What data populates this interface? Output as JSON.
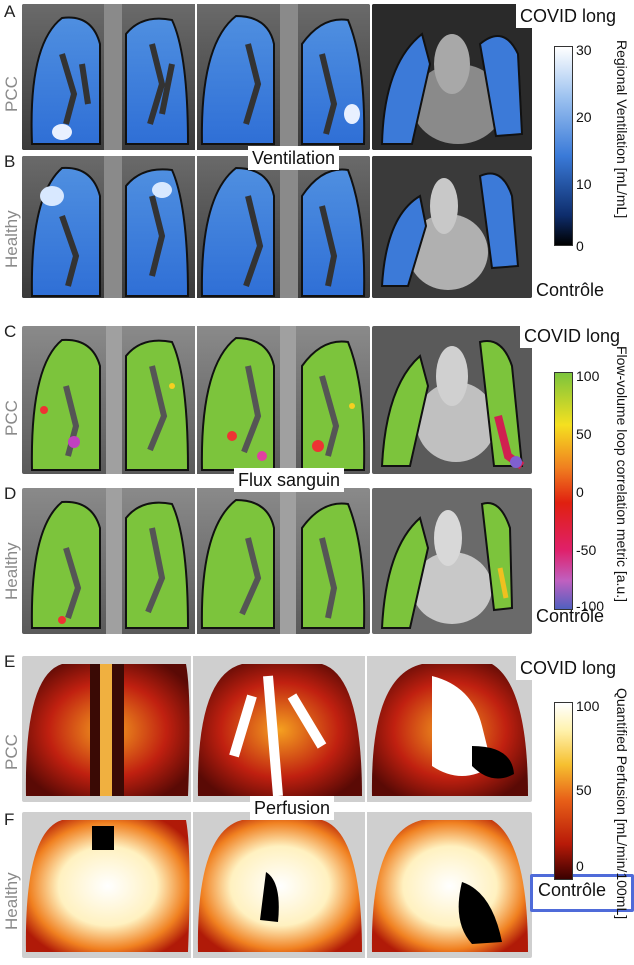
{
  "sections": [
    {
      "top_letter": "A",
      "bottom_letter": "B",
      "top_row": "PCC",
      "bottom_row": "Healthy",
      "mid_label": "Ventilation",
      "top_tag": "COVID long",
      "bottom_tag": "Contrôle",
      "colorbar": {
        "title": "Regional Ventilation [mL/mL]",
        "ticks": [
          "30",
          "20",
          "10",
          "0"
        ]
      }
    },
    {
      "top_letter": "C",
      "bottom_letter": "D",
      "top_row": "PCC",
      "bottom_row": "Healthy",
      "mid_label": "Flux sanguin",
      "top_tag": "COVID long",
      "bottom_tag": "Contrôle",
      "colorbar": {
        "title": "Flow-volume loop correlation metric [a.u.]",
        "ticks": [
          "100",
          "50",
          "0",
          "-50",
          "-100"
        ]
      }
    },
    {
      "top_letter": "E",
      "bottom_letter": "F",
      "top_row": "PCC",
      "bottom_row": "Healthy",
      "mid_label": "Perfusion",
      "top_tag": "COVID long",
      "bottom_tag": "Contrôle",
      "colorbar": {
        "title": "Quantified Perfusion [mL/min/100mL]",
        "ticks": [
          "100",
          "50",
          "0"
        ]
      }
    }
  ],
  "colors": {
    "ventilation": "#2f6fd6",
    "flow": "#7cc43c",
    "perfusion": "#c8200e",
    "selection": "#4f6bd9"
  }
}
